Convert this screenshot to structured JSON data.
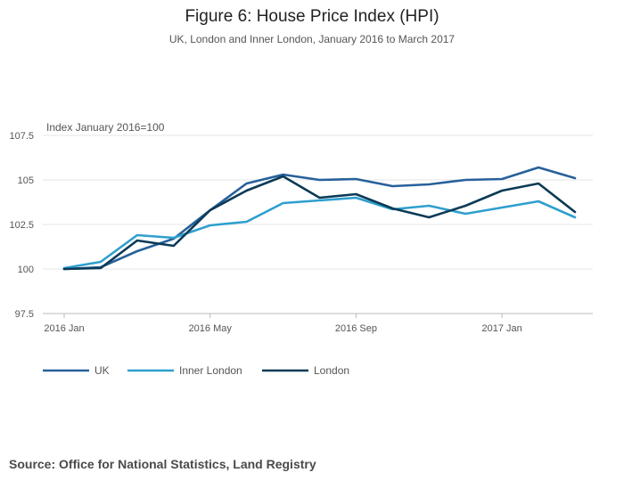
{
  "chart_data": {
    "type": "line",
    "title": "Figure 6: House Price Index (HPI)",
    "subtitle": "UK, London and Inner London, January 2016 to March 2017",
    "ylabel": "Index January 2016=100",
    "xlabel": "",
    "ylim": [
      97.5,
      107.5
    ],
    "y_ticks": [
      "97.5",
      "100",
      "102.5",
      "105",
      "107.5"
    ],
    "y_tick_values": [
      97.5,
      100,
      102.5,
      105,
      107.5
    ],
    "x_tick_labels": [
      "2016 Jan",
      "2016 May",
      "2016 Sep",
      "2017 Jan"
    ],
    "x_tick_indices": [
      0,
      4,
      8,
      12
    ],
    "categories": [
      "2016 Jan",
      "2016 Feb",
      "2016 Mar",
      "2016 Apr",
      "2016 May",
      "2016 Jun",
      "2016 Jul",
      "2016 Aug",
      "2016 Sep",
      "2016 Oct",
      "2016 Nov",
      "2016 Dec",
      "2017 Jan",
      "2017 Feb",
      "2017 Mar"
    ],
    "grid": true,
    "legend_position": "bottom-left",
    "series": [
      {
        "name": "UK",
        "color": "#27609b",
        "values": [
          100.0,
          100.1,
          101.0,
          101.7,
          103.3,
          104.8,
          105.3,
          105.0,
          105.05,
          104.65,
          104.75,
          105.0,
          105.05,
          105.7,
          105.1
        ]
      },
      {
        "name": "Inner London",
        "color": "#2e9fce",
        "values": [
          100.05,
          100.4,
          101.9,
          101.75,
          102.45,
          102.65,
          103.7,
          103.85,
          104.0,
          103.35,
          103.55,
          103.1,
          103.45,
          103.8,
          102.9
        ]
      },
      {
        "name": "London",
        "color": "#0c3a56",
        "values": [
          100.0,
          100.05,
          101.6,
          101.3,
          103.3,
          104.4,
          105.2,
          104.0,
          104.2,
          103.4,
          102.9,
          103.55,
          104.4,
          104.8,
          103.2
        ]
      }
    ]
  },
  "source_text": "Source: Office for National Statistics, Land Registry"
}
